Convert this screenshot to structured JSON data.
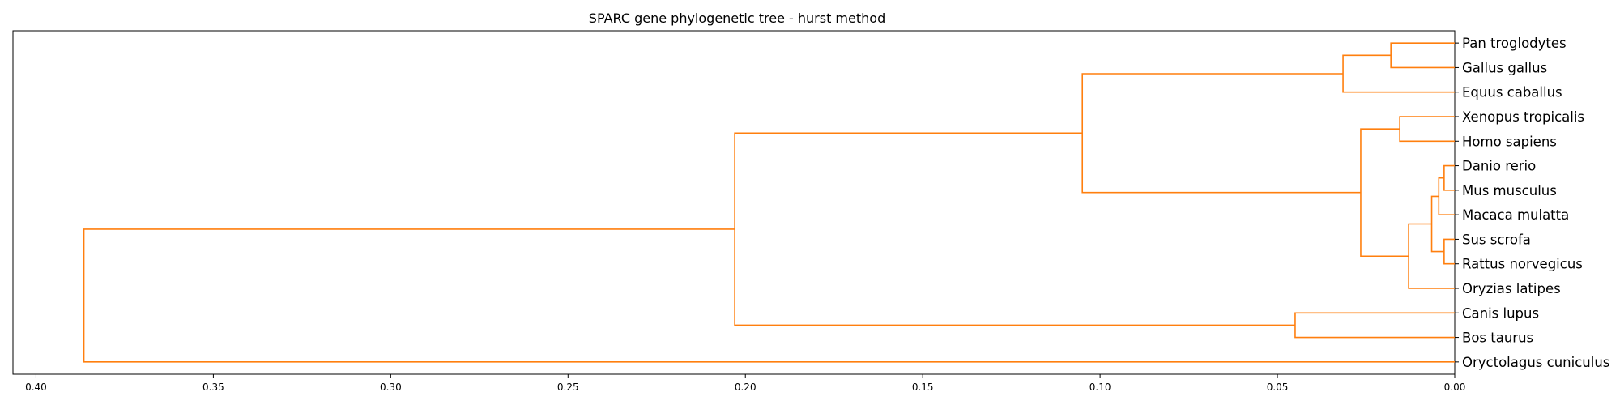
{
  "chart_data": {
    "type": "dendrogram",
    "title": "SPARC gene phylogenetic tree - hurst method",
    "xlabel": "",
    "ylabel": "",
    "orientation": "leaves-right",
    "xlim": [
      0.4065,
      0.0
    ],
    "xticks": [
      0.4,
      0.35,
      0.3,
      0.25,
      0.2,
      0.15,
      0.1,
      0.05,
      0.0
    ],
    "xtick_labels": [
      "0.40",
      "0.35",
      "0.30",
      "0.25",
      "0.20",
      "0.15",
      "0.10",
      "0.05",
      "0.00"
    ],
    "link_color": "#ff7f0e",
    "grid": false,
    "leaves": [
      "Pan troglodytes",
      "Gallus gallus",
      "Equus caballus",
      "Xenopus tropicalis",
      "Homo sapiens",
      "Danio rerio",
      "Mus musculus",
      "Macaca mulatta",
      "Sus scrofa",
      "Rattus norvegicus",
      "Oryzias latipes",
      "Canis lupus",
      "Bos taurus",
      "Oryctolagus cuniculus"
    ],
    "merges": [
      {
        "children": [
          "Danio rerio",
          "Mus musculus"
        ],
        "height": 0.003
      },
      {
        "children": [
          "Sus scrofa",
          "Rattus norvegicus"
        ],
        "height": 0.003
      },
      {
        "children": [
          0,
          "Macaca mulatta"
        ],
        "height": 0.0045
      },
      {
        "children": [
          2,
          1
        ],
        "height": 0.0065
      },
      {
        "children": [
          3,
          "Oryzias latipes"
        ],
        "height": 0.013
      },
      {
        "children": [
          "Xenopus tropicalis",
          "Homo sapiens"
        ],
        "height": 0.0155
      },
      {
        "children": [
          5,
          4
        ],
        "height": 0.0265
      },
      {
        "children": [
          "Pan troglodytes",
          "Gallus gallus"
        ],
        "height": 0.018
      },
      {
        "children": [
          7,
          "Equus caballus"
        ],
        "height": 0.0315
      },
      {
        "children": [
          8,
          6
        ],
        "height": 0.105
      },
      {
        "children": [
          "Canis lupus",
          "Bos taurus"
        ],
        "height": 0.045
      },
      {
        "children": [
          9,
          10
        ],
        "height": 0.203
      },
      {
        "children": [
          11,
          "Oryctolagus cuniculus"
        ],
        "height": 0.3865
      }
    ]
  }
}
